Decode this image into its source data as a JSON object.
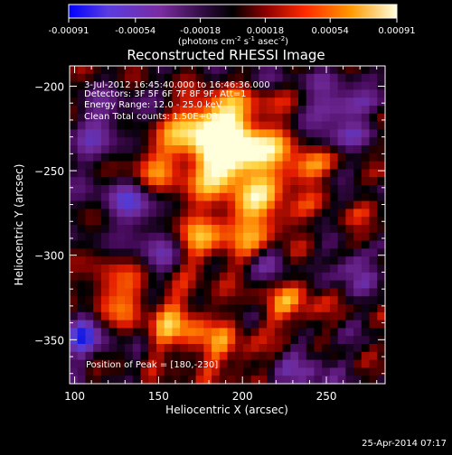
{
  "chart_data": {
    "type": "heatmap",
    "title": "Reconstructed RHESSI Image",
    "xlabel": "Heliocentric X (arcsec)",
    "ylabel": "Heliocentric Y (arcsec)",
    "xlim": [
      97,
      285
    ],
    "ylim": [
      -376,
      -188
    ],
    "x_ticks": [
      100,
      150,
      200,
      250
    ],
    "y_ticks": [
      -200,
      -250,
      -300,
      -350
    ],
    "x_tick_labels": [
      "100",
      "150",
      "200",
      "250"
    ],
    "y_tick_labels": [
      "-200",
      "-250",
      "-300",
      "-350"
    ],
    "colorbar": {
      "range": [
        -0.00091,
        0.00091
      ],
      "ticks": [
        -0.00091,
        -0.00054,
        -0.00018,
        0.00018,
        0.00054,
        0.00091
      ],
      "tick_labels": [
        "-0.00091",
        "-0.00054",
        "-0.00018",
        "0.00018",
        "0.00054",
        "0.00091"
      ],
      "unit_parts": [
        "(photons cm",
        "-2",
        " s",
        "-1",
        " asec",
        "-2",
        ")"
      ]
    },
    "annotations": [
      "3-Jul-2012 16:45:40.000 to 16:46:36.000",
      "Detectors: 3F 5F 6F 7F 8F 9F, Att=1",
      "Energy Range: 12.0 - 25.0 keV",
      "Clean    Total counts: 1.50E+03"
    ],
    "peak_label": "Position of Peak = [180,-230]",
    "colormap": [
      "#0000ff",
      "#7a3cc8",
      "#4b0a6e",
      "#000000",
      "#8b0000",
      "#ff2a00",
      "#ff9900",
      "#ffffa0",
      "#ffffff"
    ]
  },
  "footer": {
    "date": "25-Apr-2014 07:17"
  }
}
